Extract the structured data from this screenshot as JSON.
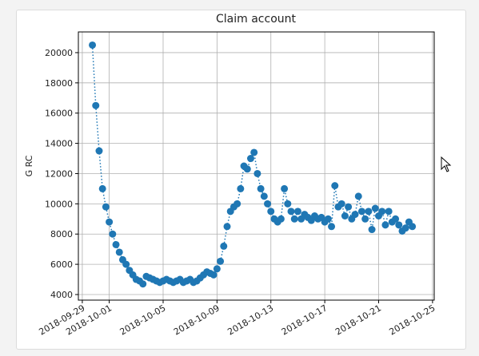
{
  "chart_data": {
    "type": "line",
    "title": "Claim account",
    "y_label": "G RC",
    "xlim": [
      "2018-09-28 17:00",
      "2018-10-25 03:00"
    ],
    "xticks": [
      "2018-09-29",
      "2018-10-01",
      "2018-10-05",
      "2018-10-09",
      "2018-10-13",
      "2018-10-17",
      "2018-10-21",
      "2018-10-25"
    ],
    "ylim": [
      3630,
      21370
    ],
    "yticks": [
      4000,
      6000,
      8000,
      10000,
      12000,
      14000,
      16000,
      18000,
      20000
    ],
    "grid": true,
    "x": [
      "2018-09-29 18:00",
      "2018-09-30 00:00",
      "2018-09-30 06:00",
      "2018-09-30 12:00",
      "2018-09-30 18:00",
      "2018-10-01 00:00",
      "2018-10-01 06:00",
      "2018-10-01 12:00",
      "2018-10-01 18:00",
      "2018-10-02 00:00",
      "2018-10-02 06:00",
      "2018-10-02 12:00",
      "2018-10-02 18:00",
      "2018-10-03 00:00",
      "2018-10-03 06:00",
      "2018-10-03 12:00",
      "2018-10-03 18:00",
      "2018-10-04 00:00",
      "2018-10-04 06:00",
      "2018-10-04 12:00",
      "2018-10-04 18:00",
      "2018-10-05 00:00",
      "2018-10-05 06:00",
      "2018-10-05 12:00",
      "2018-10-05 18:00",
      "2018-10-06 00:00",
      "2018-10-06 06:00",
      "2018-10-06 12:00",
      "2018-10-06 18:00",
      "2018-10-07 00:00",
      "2018-10-07 06:00",
      "2018-10-07 12:00",
      "2018-10-07 18:00",
      "2018-10-08 00:00",
      "2018-10-08 06:00",
      "2018-10-08 12:00",
      "2018-10-08 18:00",
      "2018-10-09 00:00",
      "2018-10-09 06:00",
      "2018-10-09 12:00",
      "2018-10-09 18:00",
      "2018-10-10 00:00",
      "2018-10-10 06:00",
      "2018-10-10 12:00",
      "2018-10-10 18:00",
      "2018-10-11 00:00",
      "2018-10-11 06:00",
      "2018-10-11 12:00",
      "2018-10-11 18:00",
      "2018-10-12 00:00",
      "2018-10-12 06:00",
      "2018-10-12 12:00",
      "2018-10-12 18:00",
      "2018-10-13 00:00",
      "2018-10-13 06:00",
      "2018-10-13 12:00",
      "2018-10-13 18:00",
      "2018-10-14 00:00",
      "2018-10-14 06:00",
      "2018-10-14 12:00",
      "2018-10-14 18:00",
      "2018-10-15 00:00",
      "2018-10-15 06:00",
      "2018-10-15 12:00",
      "2018-10-15 18:00",
      "2018-10-16 00:00",
      "2018-10-16 06:00",
      "2018-10-16 12:00",
      "2018-10-16 18:00",
      "2018-10-17 00:00",
      "2018-10-17 06:00",
      "2018-10-17 12:00",
      "2018-10-17 18:00",
      "2018-10-18 00:00",
      "2018-10-18 06:00",
      "2018-10-18 12:00",
      "2018-10-18 18:00",
      "2018-10-19 00:00",
      "2018-10-19 06:00",
      "2018-10-19 12:00",
      "2018-10-19 18:00",
      "2018-10-20 00:00",
      "2018-10-20 06:00",
      "2018-10-20 12:00",
      "2018-10-20 18:00",
      "2018-10-21 00:00",
      "2018-10-21 06:00",
      "2018-10-21 12:00",
      "2018-10-21 18:00",
      "2018-10-22 00:00",
      "2018-10-22 06:00",
      "2018-10-22 12:00",
      "2018-10-22 18:00",
      "2018-10-23 00:00",
      "2018-10-23 06:00",
      "2018-10-23 12:00"
    ],
    "series": [
      {
        "color": "#1f77b4",
        "values": [
          20500,
          16500,
          13500,
          11000,
          9800,
          8800,
          8000,
          7300,
          6800,
          6300,
          6000,
          5600,
          5300,
          5000,
          4900,
          4700,
          5200,
          5100,
          5000,
          4900,
          4800,
          4900,
          5000,
          4900,
          4800,
          4900,
          5000,
          4800,
          4900,
          5000,
          4800,
          4900,
          5100,
          5300,
          5500,
          5400,
          5300,
          5700,
          6200,
          7200,
          8500,
          9500,
          9800,
          10000,
          11000,
          12500,
          12300,
          13000,
          13400,
          12000,
          11000,
          10500,
          10000,
          9500,
          9000,
          8800,
          9000,
          11000,
          10000,
          9500,
          9000,
          9500,
          9000,
          9300,
          9100,
          8900,
          9200,
          9000,
          9100,
          8800,
          9000,
          8500,
          11200,
          9800,
          10000,
          9200,
          9800,
          9000,
          9300,
          10500,
          9500,
          9000,
          9500,
          8300,
          9700,
          9200,
          9500,
          8600,
          9500,
          8800,
          9000,
          8600,
          8200,
          8400,
          8800,
          8500
        ]
      }
    ]
  }
}
